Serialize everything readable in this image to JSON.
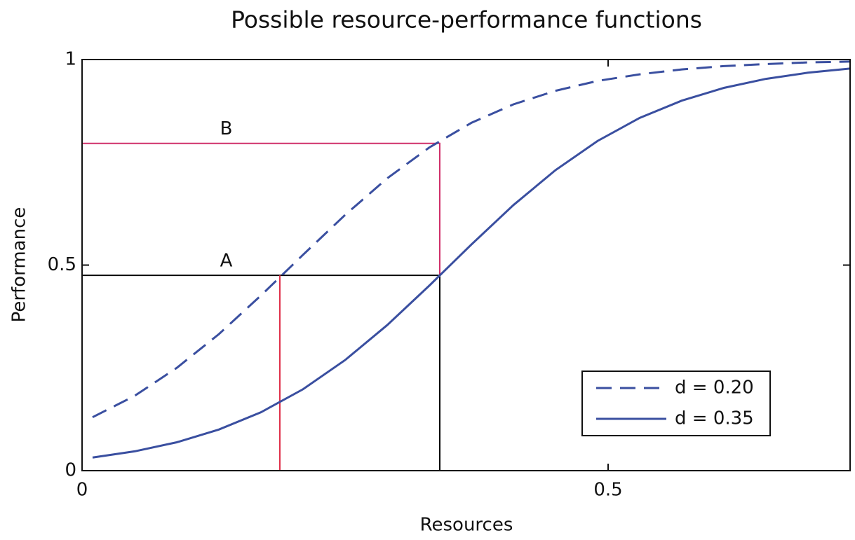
{
  "chart_data": {
    "type": "line",
    "title": "Possible resource-performance functions",
    "x_label": "Resources",
    "y_label": "Performance",
    "x": [
      0.01,
      0.05,
      0.09,
      0.13,
      0.17,
      0.21,
      0.25,
      0.29,
      0.33,
      0.37,
      0.41,
      0.45,
      0.49,
      0.53,
      0.57,
      0.61,
      0.65,
      0.69,
      0.73
    ],
    "series": [
      {
        "name": "d = 0.20",
        "color": "#3a4fa0",
        "linestyle": "dashed",
        "values": [
          0.13,
          0.182,
          0.25,
          0.332,
          0.426,
          0.525,
          0.622,
          0.711,
          0.786,
          0.846,
          0.891,
          0.924,
          0.948,
          0.964,
          0.976,
          0.984,
          0.989,
          0.993,
          0.995
        ]
      },
      {
        "name": "d = 0.35",
        "color": "#3a4fa0",
        "linestyle": "solid",
        "values": [
          0.032,
          0.047,
          0.069,
          0.1,
          0.142,
          0.198,
          0.269,
          0.354,
          0.45,
          0.55,
          0.646,
          0.731,
          0.802,
          0.858,
          0.9,
          0.931,
          0.953,
          0.968,
          0.978
        ]
      }
    ],
    "reference_lines": [
      {
        "color": "#000000",
        "x": [
          0,
          0.34,
          0.34
        ],
        "y": [
          0.475,
          0.475,
          0
        ]
      },
      {
        "color": "#e0304a",
        "x": [
          0.188,
          0.188
        ],
        "y": [
          0,
          0.475
        ]
      },
      {
        "color": "#d0306a",
        "x": [
          0,
          0.34,
          0.34
        ],
        "y": [
          0.796,
          0.796,
          0.475
        ]
      }
    ],
    "annotations": [
      {
        "text": "A",
        "x": 0.137,
        "y": 0.475
      },
      {
        "text": "B",
        "x": 0.137,
        "y": 0.796
      }
    ],
    "xlim": [
      0,
      0.73
    ],
    "ylim": [
      0,
      1
    ],
    "xticks": [
      0,
      0.5
    ],
    "yticks": [
      0,
      0.5,
      1
    ],
    "legend": "lower right",
    "grid": false
  }
}
